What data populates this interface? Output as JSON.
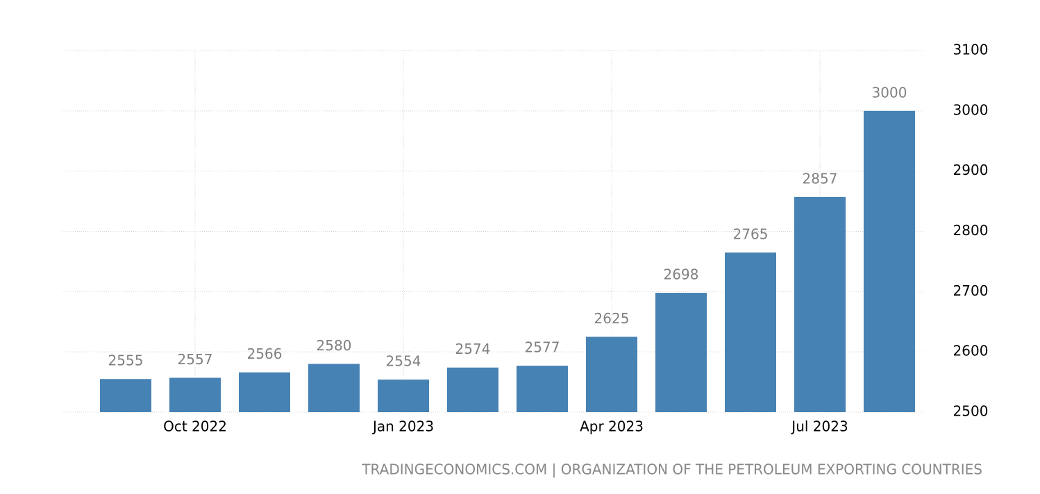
{
  "chart_data": {
    "type": "bar",
    "source": "TRADINGECONOMICS.COM | ORGANIZATION OF THE PETROLEUM EXPORTING COUNTRIES",
    "categories": [
      null,
      "Oct 2022",
      null,
      null,
      "Jan 2023",
      null,
      null,
      "Apr 2023",
      null,
      null,
      "Jul 2023",
      null
    ],
    "values": [
      2555,
      2557,
      2566,
      2580,
      2554,
      2574,
      2577,
      2625,
      2698,
      2765,
      2857,
      3000
    ],
    "color": "#4682b4",
    "ylim": [
      2500,
      3100
    ],
    "yticks": [
      2500,
      2600,
      2700,
      2800,
      2900,
      3000,
      3100
    ],
    "grid": true
  }
}
